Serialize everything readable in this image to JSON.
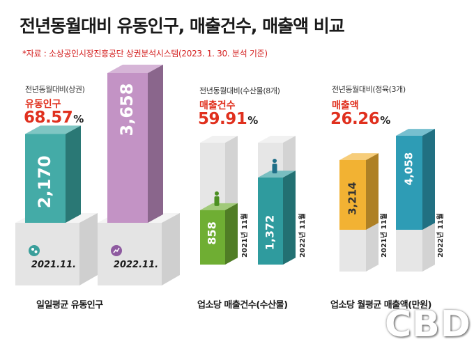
{
  "title": "전년동월대비 유동인구, 매출건수, 매출액 비교",
  "source": "*자료 : 소상공인시장진흥공단 상권분석시스템(2023. 1. 30. 분석 기준)",
  "watermark": "CBD",
  "colors": {
    "bar_2021_population": "#3aa7a2",
    "bar_2022_population": "#c08dc2",
    "bar_2021_count": "#6fae33",
    "bar_2022_count": "#2f9b9e",
    "bar_2021_sales": "#f2b233",
    "bar_2022_sales": "#2e9cb5",
    "accent_red": "#e0301e"
  },
  "chart_data": [
    {
      "type": "bar",
      "subtitle": "전년동월대비(상권)",
      "metric": "유동인구",
      "change": "68.57",
      "unit": "%",
      "categories": [
        "2021.11.",
        "2022.11."
      ],
      "values": [
        2170,
        3658
      ],
      "value_labels": [
        "2,170",
        "3,658"
      ],
      "caption": "일일평균 유동인구",
      "icons": [
        "people-icon",
        "trend-chart-icon"
      ]
    },
    {
      "type": "bar",
      "subtitle": "전년동월대비(수산물(8개)",
      "metric": "매출건수",
      "change": "59.91",
      "unit": "%",
      "categories": [
        "2021년 11월",
        "2022년 11월"
      ],
      "values": [
        858,
        1372
      ],
      "value_labels": [
        "858",
        "1,372"
      ],
      "caption": "업소당 매출건수(수산물)",
      "icons": [
        "person-icon",
        "person-icon"
      ]
    },
    {
      "type": "bar",
      "subtitle": "전년동월대비(정육(3개)",
      "metric": "매출액",
      "change": "26.26",
      "unit": "%",
      "categories": [
        "2021년 11월",
        "2022년 11월"
      ],
      "values": [
        3214,
        4058
      ],
      "value_labels": [
        "3,214",
        "4,058"
      ],
      "caption": "업소당 월평균 매출액(만원)"
    }
  ]
}
